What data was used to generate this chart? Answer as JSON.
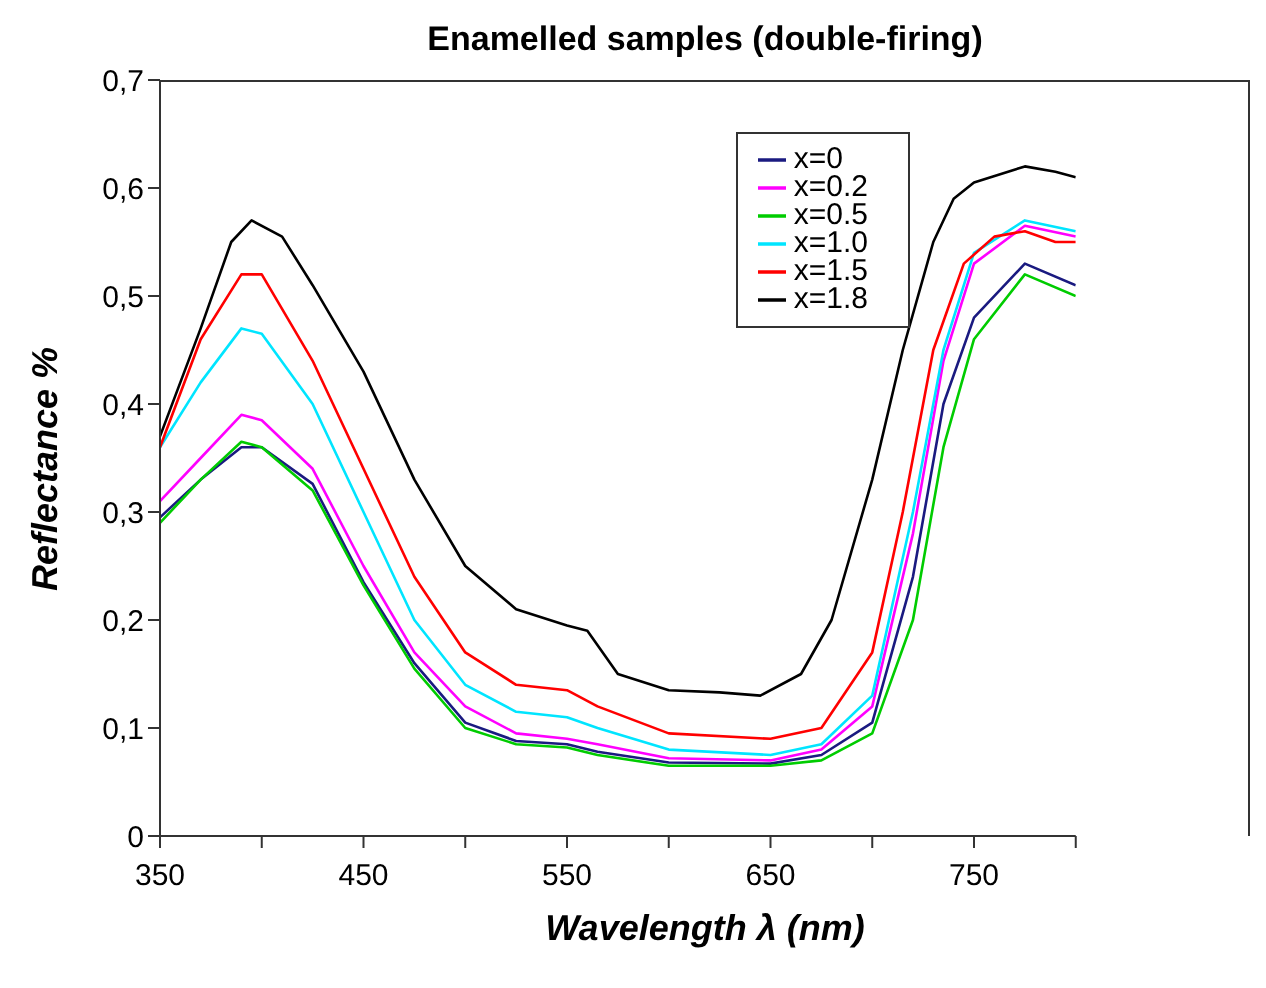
{
  "chart_data": {
    "type": "line",
    "title": "Enamelled samples (double-firing)",
    "xlabel": "Wavelength λ (nm)",
    "ylabel": "Reflectance %",
    "xlim": [
      350,
      800
    ],
    "xticks": [
      350,
      {
        "value": 400,
        "label": null
      },
      450,
      {
        "value": 500,
        "label": null
      },
      550,
      {
        "value": 600,
        "label": null
      },
      650,
      {
        "value": 700,
        "label": null
      },
      750,
      {
        "value": 800,
        "label": null
      }
    ],
    "ylim": [
      0,
      0.7
    ],
    "yticks": [
      {
        "value": 0,
        "label": "0"
      },
      {
        "value": 0.1,
        "label": "0,1"
      },
      {
        "value": 0.2,
        "label": "0,2"
      },
      {
        "value": 0.3,
        "label": "0,3"
      },
      {
        "value": 0.4,
        "label": "0,4"
      },
      {
        "value": 0.5,
        "label": "0,5"
      },
      {
        "value": 0.6,
        "label": "0,6"
      },
      {
        "value": 0.7,
        "label": "0,7"
      }
    ],
    "grid": false,
    "legend": "top right",
    "marker": "none",
    "line_style": "solid",
    "series": [
      {
        "name": "x=0",
        "color": "#1a1a80",
        "x": [
          350,
          370,
          390,
          400,
          425,
          450,
          475,
          500,
          525,
          550,
          565,
          600,
          650,
          675,
          700,
          720,
          735,
          750,
          775,
          800
        ],
        "values": [
          0.295,
          0.33,
          0.36,
          0.36,
          0.326,
          0.235,
          0.16,
          0.105,
          0.088,
          0.085,
          0.078,
          0.068,
          0.067,
          0.075,
          0.105,
          0.24,
          0.4,
          0.48,
          0.53,
          0.51
        ]
      },
      {
        "name": "x=0.2",
        "color": "#ff00ff",
        "x": [
          350,
          370,
          390,
          400,
          425,
          450,
          475,
          500,
          525,
          550,
          565,
          600,
          650,
          675,
          700,
          720,
          735,
          750,
          775,
          800
        ],
        "values": [
          0.31,
          0.35,
          0.39,
          0.385,
          0.34,
          0.25,
          0.17,
          0.12,
          0.095,
          0.09,
          0.085,
          0.072,
          0.07,
          0.08,
          0.12,
          0.28,
          0.44,
          0.53,
          0.565,
          0.555
        ]
      },
      {
        "name": "x=0.5",
        "color": "#00cc00",
        "x": [
          350,
          370,
          390,
          400,
          425,
          450,
          475,
          500,
          525,
          550,
          565,
          600,
          650,
          675,
          700,
          720,
          735,
          750,
          775,
          800
        ],
        "values": [
          0.29,
          0.33,
          0.365,
          0.36,
          0.32,
          0.232,
          0.155,
          0.1,
          0.085,
          0.082,
          0.075,
          0.065,
          0.065,
          0.07,
          0.095,
          0.2,
          0.36,
          0.46,
          0.52,
          0.5
        ]
      },
      {
        "name": "x=1.0",
        "color": "#00e5ff",
        "x": [
          350,
          370,
          390,
          400,
          425,
          450,
          475,
          500,
          525,
          550,
          565,
          600,
          650,
          675,
          700,
          720,
          735,
          750,
          775,
          800
        ],
        "values": [
          0.36,
          0.42,
          0.47,
          0.465,
          0.4,
          0.3,
          0.2,
          0.14,
          0.115,
          0.11,
          0.1,
          0.08,
          0.075,
          0.085,
          0.13,
          0.3,
          0.45,
          0.54,
          0.57,
          0.56
        ]
      },
      {
        "name": "x=1.5",
        "color": "#ff0000",
        "x": [
          350,
          370,
          390,
          400,
          425,
          450,
          475,
          500,
          525,
          550,
          565,
          600,
          650,
          675,
          700,
          715,
          730,
          745,
          760,
          775,
          790,
          800
        ],
        "values": [
          0.36,
          0.46,
          0.52,
          0.52,
          0.44,
          0.34,
          0.24,
          0.17,
          0.14,
          0.135,
          0.12,
          0.095,
          0.09,
          0.1,
          0.17,
          0.3,
          0.45,
          0.53,
          0.555,
          0.56,
          0.55,
          0.55
        ]
      },
      {
        "name": "x=1.8",
        "color": "#000000",
        "x": [
          350,
          370,
          385,
          395,
          410,
          425,
          450,
          475,
          500,
          525,
          550,
          560,
          575,
          600,
          625,
          645,
          665,
          680,
          700,
          715,
          730,
          740,
          750,
          775,
          790,
          800
        ],
        "values": [
          0.37,
          0.47,
          0.55,
          0.57,
          0.555,
          0.51,
          0.43,
          0.33,
          0.25,
          0.21,
          0.195,
          0.19,
          0.15,
          0.135,
          0.133,
          0.13,
          0.15,
          0.2,
          0.33,
          0.45,
          0.55,
          0.59,
          0.605,
          0.62,
          0.615,
          0.61
        ]
      }
    ]
  }
}
